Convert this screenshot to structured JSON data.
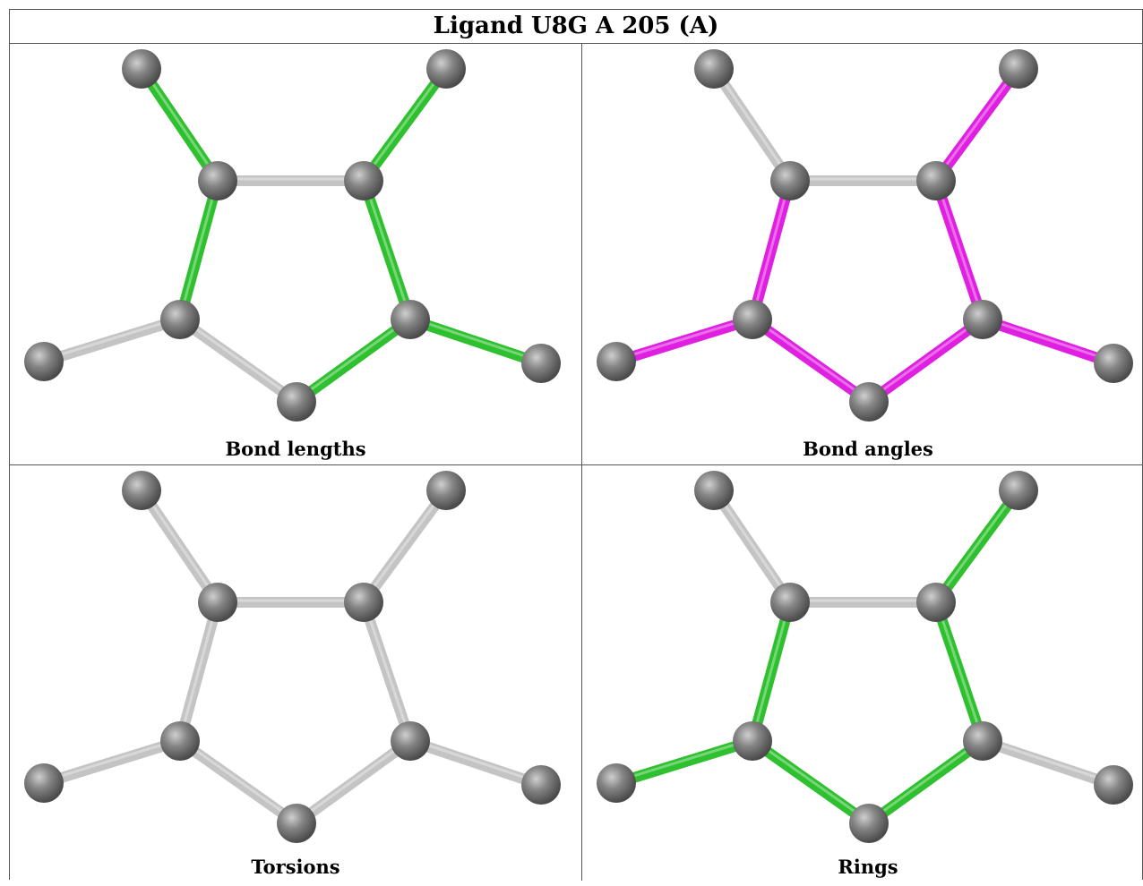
{
  "title": "Ligand U8G A 205 (A)",
  "colors": {
    "atom": "#7a7a7a",
    "bond_default": "#c4c4c4",
    "bond_green": "#2ec02e",
    "bond_magenta": "#e020e0"
  },
  "panels": [
    {
      "caption": "Bond lengths",
      "highlight": "green",
      "bonds": [
        "green",
        "green",
        "gray",
        "green",
        "green",
        "gray",
        "green",
        "gray",
        "green",
        "green"
      ]
    },
    {
      "caption": "Bond angles",
      "highlight": "magenta",
      "bonds": [
        "gray",
        "magenta",
        "gray",
        "magenta",
        "magenta",
        "magenta",
        "magenta",
        "magenta",
        "magenta",
        "magenta"
      ]
    },
    {
      "caption": "Torsions",
      "highlight": "none",
      "bonds": [
        "gray",
        "gray",
        "gray",
        "gray",
        "gray",
        "gray",
        "gray",
        "gray",
        "gray",
        "gray"
      ]
    },
    {
      "caption": "Rings",
      "highlight": "green",
      "bonds": [
        "gray",
        "green",
        "gray",
        "green",
        "green",
        "green",
        "green",
        "green",
        "gray",
        "gray"
      ]
    }
  ]
}
